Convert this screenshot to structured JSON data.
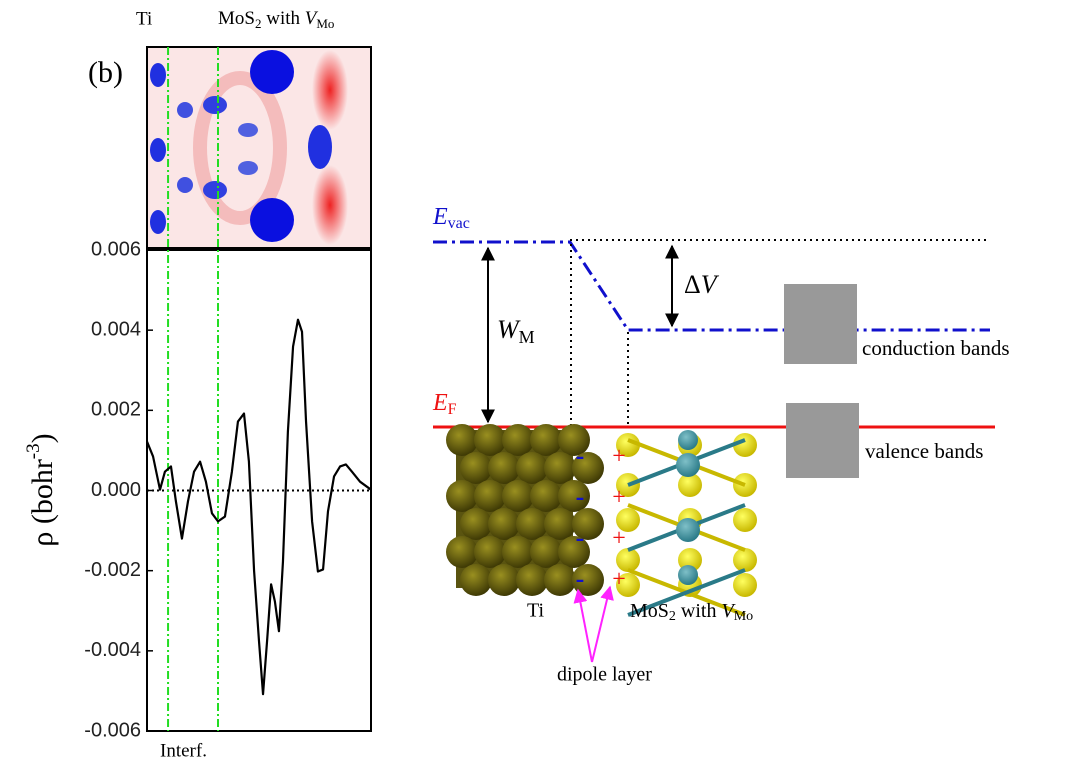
{
  "chart_data": {
    "type": "line",
    "panel_label": "(b)",
    "ylabel": "ρ (bohr",
    "ylabel_sup": "-3",
    "ylabel_end": ")",
    "xlabel": "Interf.",
    "top_left_label": "Ti",
    "top_right_label": [
      "MoS",
      "2",
      " with ",
      "V",
      "Mo"
    ],
    "x": [
      0,
      2.7,
      5.8,
      8,
      10.7,
      12.9,
      15.6,
      18.3,
      21,
      23.7,
      26.3,
      29,
      31.7,
      34.8,
      37.9,
      40.6,
      43.3,
      45.5,
      47.8,
      50,
      51.8,
      53.6,
      55.4,
      57.1,
      58.9,
      60.7,
      62.9,
      65.2,
      67.4,
      69.2,
      71,
      73.7,
      76.3,
      78.6,
      80.8,
      83.5,
      86.2,
      88.8,
      91.5,
      95.1,
      100
    ],
    "values": [
      0.00122,
      0.00085,
      2e-05,
      0.00047,
      0.0006,
      -0.00027,
      -0.0012,
      -0.00027,
      0.00047,
      0.00072,
      0.00022,
      -0.00057,
      -0.00077,
      -0.00065,
      0.00047,
      0.00172,
      0.00192,
      0.00072,
      -0.002,
      -0.00376,
      -0.00508,
      -0.00376,
      -0.00234,
      -0.00277,
      -0.00351,
      -0.00177,
      0.00147,
      0.00359,
      0.00426,
      0.00396,
      0.00172,
      -0.00077,
      -0.00202,
      -0.00197,
      -0.00052,
      0.00035,
      0.0006,
      0.00065,
      0.00047,
      0.00022,
      2e-05
    ],
    "color": "#000000",
    "xlim": [
      0,
      100
    ],
    "ylim": [
      -0.006,
      0.006
    ],
    "yticks": [
      -0.006,
      -0.004,
      -0.002,
      {
        "value": 0,
        "label": "0.000"
      },
      0.002,
      0.004,
      0.006
    ],
    "vlines": [
      9.4,
      31.7
    ],
    "vline_color": "#22dd22",
    "hline": 0
  },
  "diagram": {
    "evac": [
      "E",
      "vac"
    ],
    "ef": [
      "E",
      "F"
    ],
    "wm": [
      "W",
      "M"
    ],
    "dv": [
      "Δ",
      "V"
    ],
    "conduction": "conduction bands",
    "valence": "valence bands",
    "ti": "Ti",
    "mos2": [
      "MoS",
      "2",
      " with ",
      "V",
      "Mo"
    ],
    "dipole": "dipole layer",
    "minus": [
      "-",
      "-",
      "-",
      "-"
    ],
    "plus": [
      "+",
      "+",
      "+",
      "+"
    ]
  }
}
